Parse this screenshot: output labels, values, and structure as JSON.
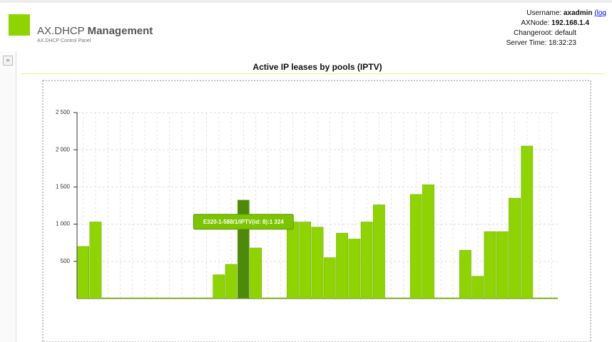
{
  "header": {
    "brand": "AX.DHCP",
    "brand_bold": "Management",
    "subtitle": "AX.DHCP Control Panel",
    "info": [
      {
        "label": "Username:",
        "value": "axadmin",
        "link": "(log"
      },
      {
        "label": "AXNode:",
        "value": "192.168.1.4"
      },
      {
        "label": "Changeroot:",
        "value": "default"
      },
      {
        "label": "Server Time:",
        "value": "18:32:23"
      }
    ]
  },
  "sidebar_toggle": "»",
  "chart_data": {
    "type": "bar",
    "title": "Active IP leases by pools (IPTV)",
    "categories": [
      null,
      null,
      null,
      null,
      null,
      null,
      null,
      null,
      null,
      null,
      null,
      null,
      null,
      null,
      null,
      null,
      null,
      null,
      null,
      null,
      null,
      null,
      null,
      null,
      null,
      null,
      null,
      null,
      null,
      null,
      null,
      null,
      null,
      null,
      null,
      null,
      null,
      null,
      null
    ],
    "values": [
      700,
      1030,
      10,
      10,
      10,
      10,
      10,
      10,
      10,
      10,
      10,
      320,
      460,
      1324,
      680,
      10,
      10,
      1030,
      1030,
      960,
      550,
      880,
      800,
      1030,
      1260,
      10,
      10,
      1400,
      1530,
      10,
      10,
      650,
      300,
      900,
      900,
      1350,
      2050,
      10,
      10
    ],
    "color": "#8fd400",
    "highlight_color": "#4e8a0a",
    "tooltip": {
      "label": "E320-1-588/1/IPTV(id: 8):1 324",
      "bar": 13
    },
    "ylim": [
      0,
      2500
    ],
    "yticks": [
      500,
      {
        "value": 1000,
        "label": "1 000"
      },
      {
        "value": 1500,
        "label": "1 500"
      },
      {
        "value": 2000,
        "label": "2 000"
      },
      {
        "value": 2500,
        "label": "2 500"
      }
    ],
    "grid": true
  }
}
